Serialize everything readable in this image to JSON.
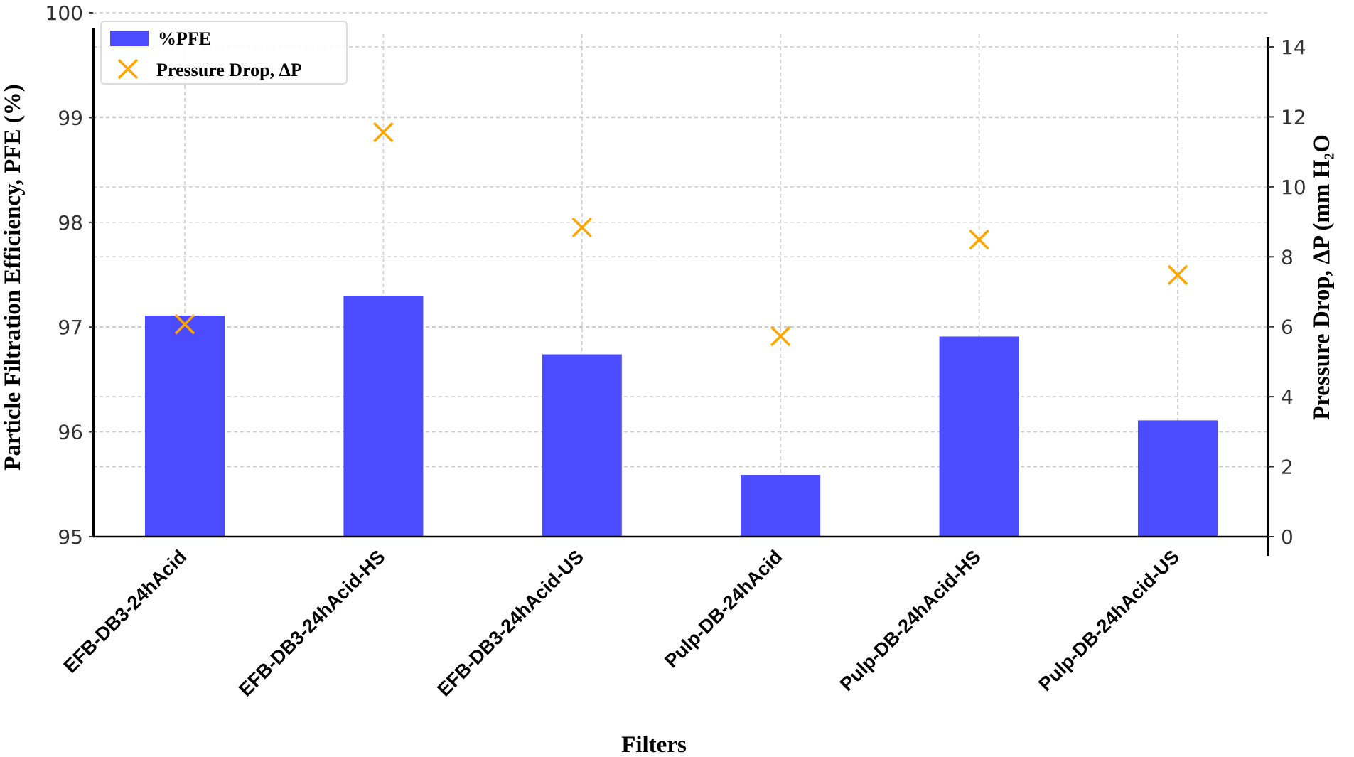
{
  "chart_data": {
    "type": "bar",
    "xlabel": "Filters",
    "ylabel": "Particle Filtration Efficiency, PFE (%)",
    "y2label": "Pressure Drop, ΔP (mm H₂O",
    "categories": [
      "EFB-DB3-24hAcid",
      "EFB-DB3-24hAcid-HS",
      "EFB-DB3-24hAcid-US",
      "Pulp-DB-24hAcid",
      "Pulp-DB-24hAcid-HS",
      "Pulp-DB-24hAcid-US"
    ],
    "series": [
      {
        "name": "%PFE",
        "type": "bar",
        "axis": "left",
        "color": "#4b4bff",
        "values": [
          97.11,
          97.3,
          96.74,
          95.59,
          96.91,
          96.11
        ]
      },
      {
        "name": "Pressure Drop, ΔP",
        "type": "scatter",
        "marker": "x",
        "axis": "right",
        "color": "#ffa500",
        "values": [
          6.07,
          11.56,
          8.84,
          5.73,
          8.49,
          7.48
        ]
      }
    ],
    "ylim": [
      95,
      100
    ],
    "y2lim": [
      0,
      14
    ],
    "yticks": [
      "95",
      "96",
      "97",
      "98",
      "99",
      "100"
    ],
    "y2ticks": [
      "0",
      "2",
      "4",
      "6",
      "8",
      "10",
      "12",
      "14"
    ],
    "grid": true,
    "legend": "top-left"
  }
}
